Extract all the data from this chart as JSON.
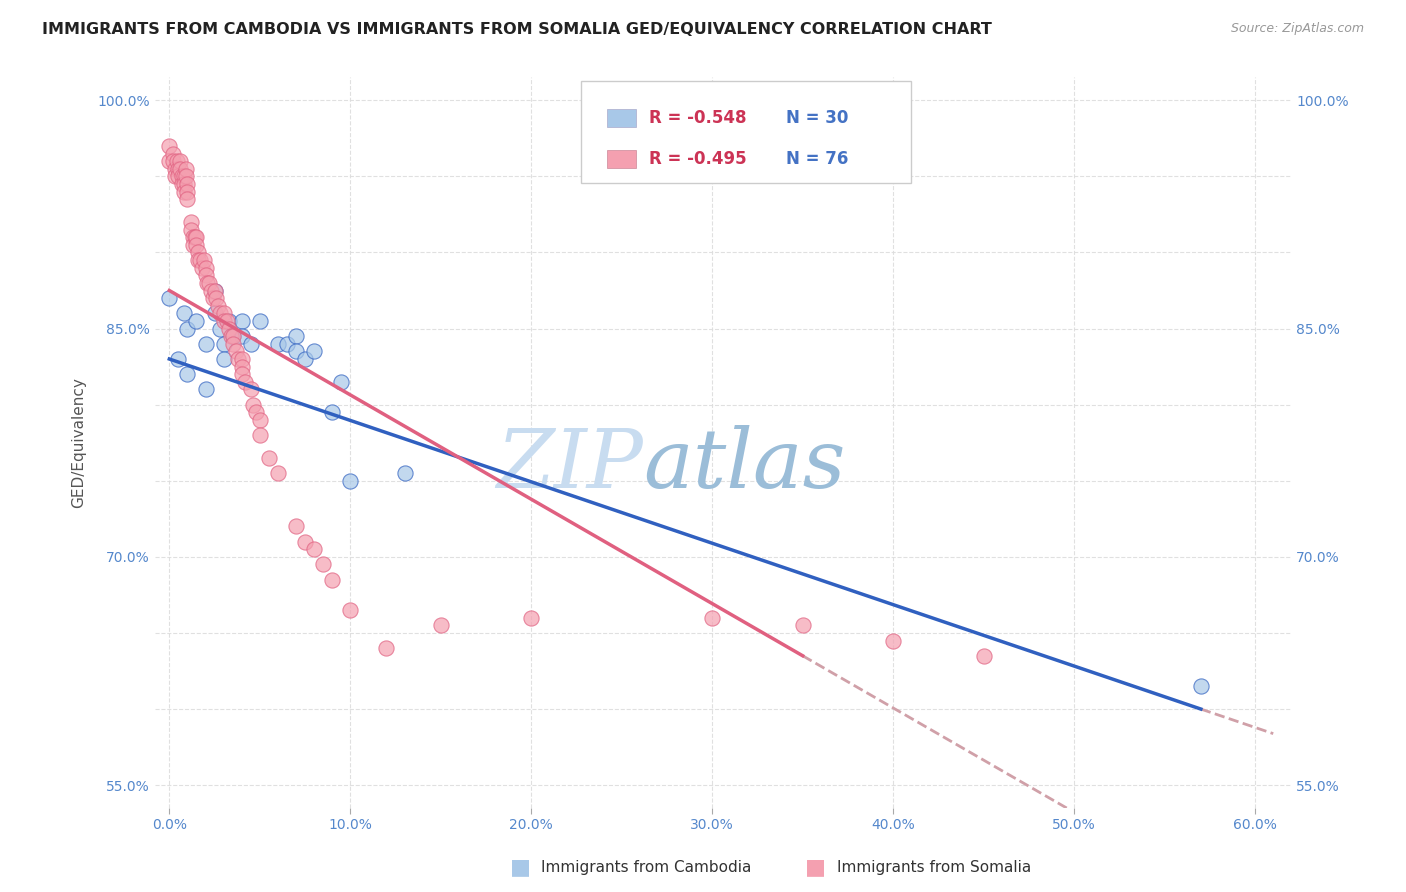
{
  "title": "IMMIGRANTS FROM CAMBODIA VS IMMIGRANTS FROM SOMALIA GED/EQUIVALENCY CORRELATION CHART",
  "source": "Source: ZipAtlas.com",
  "ylabel": "GED/Equivalency",
  "legend_r_cambodia": "R = -0.548",
  "legend_n_cambodia": "N = 30",
  "legend_r_somalia": "R = -0.495",
  "legend_n_somalia": "N = 76",
  "legend_label_cambodia": "Immigrants from Cambodia",
  "legend_label_somalia": "Immigrants from Somalia",
  "x_tick_vals": [
    0.0,
    0.1,
    0.2,
    0.3,
    0.4,
    0.5,
    0.6
  ],
  "y_tick_vals": [
    0.55,
    0.6,
    0.65,
    0.7,
    0.75,
    0.8,
    0.85,
    0.9,
    0.95,
    1.0
  ],
  "xlim": [
    -0.008,
    0.62
  ],
  "ylim": [
    0.535,
    1.015
  ],
  "scatter_cambodia_x": [
    0.0,
    0.005,
    0.008,
    0.01,
    0.01,
    0.015,
    0.02,
    0.02,
    0.025,
    0.025,
    0.028,
    0.03,
    0.03,
    0.033,
    0.035,
    0.04,
    0.04,
    0.045,
    0.05,
    0.06,
    0.065,
    0.07,
    0.07,
    0.075,
    0.08,
    0.09,
    0.095,
    0.1,
    0.13,
    0.57
  ],
  "scatter_cambodia_y": [
    0.87,
    0.83,
    0.86,
    0.85,
    0.82,
    0.855,
    0.84,
    0.81,
    0.875,
    0.86,
    0.85,
    0.84,
    0.83,
    0.855,
    0.845,
    0.855,
    0.845,
    0.84,
    0.855,
    0.84,
    0.84,
    0.845,
    0.835,
    0.83,
    0.835,
    0.795,
    0.815,
    0.75,
    0.755,
    0.615
  ],
  "scatter_somalia_x": [
    0.0,
    0.0,
    0.002,
    0.002,
    0.003,
    0.003,
    0.004,
    0.005,
    0.005,
    0.006,
    0.006,
    0.007,
    0.007,
    0.008,
    0.008,
    0.008,
    0.009,
    0.009,
    0.01,
    0.01,
    0.01,
    0.012,
    0.012,
    0.013,
    0.013,
    0.014,
    0.015,
    0.015,
    0.016,
    0.016,
    0.017,
    0.018,
    0.019,
    0.02,
    0.02,
    0.021,
    0.022,
    0.023,
    0.024,
    0.025,
    0.026,
    0.027,
    0.028,
    0.03,
    0.03,
    0.032,
    0.033,
    0.034,
    0.035,
    0.035,
    0.037,
    0.038,
    0.04,
    0.04,
    0.04,
    0.042,
    0.045,
    0.046,
    0.048,
    0.05,
    0.05,
    0.055,
    0.06,
    0.07,
    0.075,
    0.08,
    0.085,
    0.09,
    0.1,
    0.12,
    0.15,
    0.2,
    0.3,
    0.35,
    0.4,
    0.45
  ],
  "scatter_somalia_y": [
    0.97,
    0.96,
    0.965,
    0.96,
    0.955,
    0.95,
    0.96,
    0.955,
    0.95,
    0.96,
    0.955,
    0.95,
    0.945,
    0.95,
    0.945,
    0.94,
    0.955,
    0.95,
    0.945,
    0.94,
    0.935,
    0.92,
    0.915,
    0.91,
    0.905,
    0.91,
    0.91,
    0.905,
    0.9,
    0.895,
    0.895,
    0.89,
    0.895,
    0.89,
    0.885,
    0.88,
    0.88,
    0.875,
    0.87,
    0.875,
    0.87,
    0.865,
    0.86,
    0.86,
    0.855,
    0.855,
    0.85,
    0.845,
    0.845,
    0.84,
    0.835,
    0.83,
    0.83,
    0.825,
    0.82,
    0.815,
    0.81,
    0.8,
    0.795,
    0.79,
    0.78,
    0.765,
    0.755,
    0.72,
    0.71,
    0.705,
    0.695,
    0.685,
    0.665,
    0.64,
    0.655,
    0.66,
    0.66,
    0.655,
    0.645,
    0.635
  ],
  "color_cambodia": "#A8C8E8",
  "color_somalia": "#F4A0B0",
  "color_line_cambodia": "#3060C0",
  "color_line_somalia": "#E06080",
  "color_line_dashed": "#D0A0A8",
  "title_color": "#222222",
  "source_color": "#999999",
  "tick_label_color": "#5588CC",
  "ylabel_color": "#555555",
  "watermark_zip_color": "#C8DCF0",
  "watermark_atlas_color": "#9BBDD8",
  "background_color": "#FFFFFF",
  "grid_color": "#DDDDDD",
  "legend_text_color": "#4472C4",
  "legend_neg_color": "#CC3355"
}
